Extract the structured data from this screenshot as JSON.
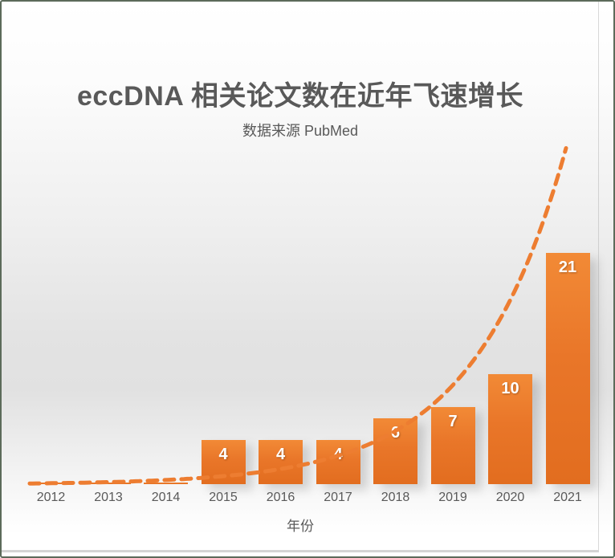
{
  "slide": {
    "title": "eccDNA 相关论文数在近年飞速增长",
    "subtitle": "数据来源 PubMed"
  },
  "chart_data": {
    "type": "bar",
    "title": "eccDNA 相关论文数在近年飞速增长",
    "subtitle": "数据来源 PubMed",
    "categories": [
      "2012",
      "2013",
      "2014",
      "2015",
      "2016",
      "2017",
      "2018",
      "2019",
      "2020",
      "2021"
    ],
    "values": [
      0,
      0,
      0,
      4,
      4,
      4,
      6,
      7,
      10,
      21
    ],
    "data_labels": [
      "",
      "",
      "",
      "4",
      "4",
      "4",
      "6",
      "7",
      "10",
      "21"
    ],
    "xlabel": "年份",
    "ylabel": "",
    "ylim": [
      0,
      22
    ],
    "grid": false,
    "legend": false,
    "bar_color": "#ED7D31",
    "data_label_color": "#FFFFFF",
    "axis_text_color": "#595959",
    "title_color": "#595959",
    "trendline": {
      "type": "exponential",
      "style": "dashed",
      "color": "#ED7D31"
    }
  }
}
